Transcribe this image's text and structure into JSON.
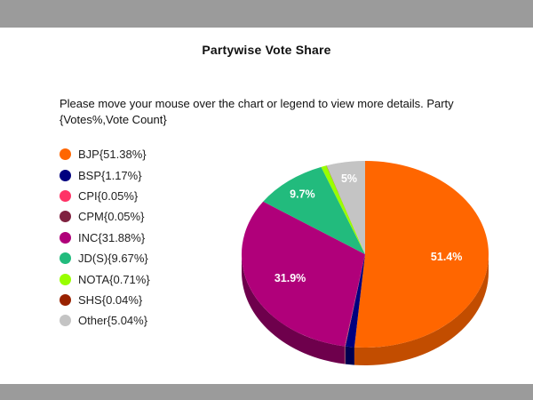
{
  "page": {
    "title": "Partywise Vote Share",
    "instructions": "Please move your mouse over the chart or legend to view more details. Party {Votes%,Vote Count}"
  },
  "legend": {
    "items": [
      {
        "label": "BJP{51.38%}"
      },
      {
        "label": "BSP{1.17%}"
      },
      {
        "label": "CPI{0.05%}"
      },
      {
        "label": "CPM{0.05%}"
      },
      {
        "label": "INC{31.88%}"
      },
      {
        "label": "JD(S){9.67%}"
      },
      {
        "label": "NOTA{0.71%}"
      },
      {
        "label": "SHS{0.04%}"
      },
      {
        "label": "Other{5.04%}"
      }
    ]
  },
  "chart_data": {
    "type": "pie",
    "style": "3d",
    "title": "Partywise Vote Share",
    "legend_position": "left",
    "slices": [
      {
        "name": "BJP",
        "value": 51.38,
        "color": "#ff6600",
        "side_color": "#c24d00",
        "label": "51.4%"
      },
      {
        "name": "BSP",
        "value": 1.17,
        "color": "#00007f",
        "side_color": "#000050",
        "label": ""
      },
      {
        "name": "CPI",
        "value": 0.05,
        "color": "#ff3366",
        "side_color": "#b3244a",
        "label": ""
      },
      {
        "name": "CPM",
        "value": 0.05,
        "color": "#7f2240",
        "side_color": "#55162b",
        "label": ""
      },
      {
        "name": "INC",
        "value": 31.88,
        "color": "#b0007a",
        "side_color": "#6e004c",
        "label": "31.9%"
      },
      {
        "name": "JD(S)",
        "value": 9.67,
        "color": "#22bb7d",
        "side_color": "#178456",
        "label": "9.7%"
      },
      {
        "name": "NOTA",
        "value": 0.71,
        "color": "#99ff00",
        "side_color": "#6bb300",
        "label": ""
      },
      {
        "name": "SHS",
        "value": 0.04,
        "color": "#992200",
        "side_color": "#661700",
        "label": ""
      },
      {
        "name": "Other",
        "value": 5.04,
        "color": "#c4c4c4",
        "side_color": "#8f8f8f",
        "label": "5%"
      }
    ]
  }
}
